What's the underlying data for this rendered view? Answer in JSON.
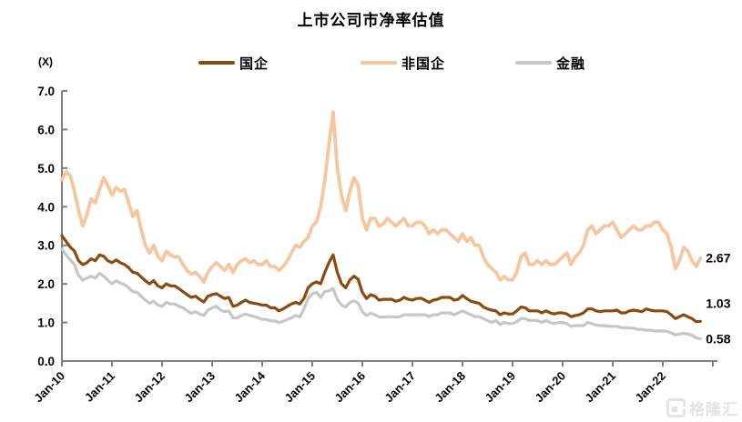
{
  "title": "上市公司市净率估值",
  "unit_label": "(X)",
  "watermark": {
    "text": "格隆汇"
  },
  "colors": {
    "guoqi": "#8B4A0F",
    "fei_guoqi": "#F6C79E",
    "jinrong": "#C6C6C6",
    "axis": "#7F7F7F",
    "text": "#000000",
    "watermark": "#E4E4E4"
  },
  "chart_data": {
    "type": "line",
    "title": "上市公司市净率估值",
    "ylabel": "(X)",
    "ylim": [
      0,
      7
    ],
    "ytick_step": 1.0,
    "ytick_labels": [
      "0.0",
      "1.0",
      "2.0",
      "3.0",
      "4.0",
      "5.0",
      "6.0",
      "7.0"
    ],
    "grid": false,
    "legend_position": "top",
    "x_frequency": "monthly",
    "x_range": [
      "Jan-2010",
      "Oct-2022"
    ],
    "xtick_labels": [
      "Jan-10",
      "Jan-11",
      "Jan-12",
      "Jan-13",
      "Jan-14",
      "Jan-15",
      "Jan-16",
      "Jan-17",
      "Jan-18",
      "Jan-19",
      "Jan-20",
      "Jan-21",
      "Jan-22"
    ],
    "series": [
      {
        "name": "国企",
        "color": "#8B4A0F",
        "end_label": "1.03",
        "values": [
          3.25,
          3.1,
          2.95,
          2.85,
          2.6,
          2.5,
          2.55,
          2.65,
          2.6,
          2.75,
          2.72,
          2.6,
          2.55,
          2.62,
          2.55,
          2.5,
          2.42,
          2.3,
          2.28,
          2.18,
          2.08,
          2.0,
          2.08,
          1.95,
          1.9,
          2.0,
          1.95,
          1.95,
          1.88,
          1.8,
          1.72,
          1.65,
          1.68,
          1.6,
          1.53,
          1.68,
          1.72,
          1.75,
          1.68,
          1.62,
          1.65,
          1.42,
          1.45,
          1.52,
          1.58,
          1.52,
          1.5,
          1.48,
          1.45,
          1.45,
          1.38,
          1.38,
          1.3,
          1.35,
          1.42,
          1.48,
          1.52,
          1.48,
          1.62,
          1.9,
          2.0,
          2.05,
          2.0,
          2.3,
          2.55,
          2.75,
          2.3,
          2.0,
          1.9,
          2.1,
          2.2,
          2.12,
          1.78,
          1.62,
          1.72,
          1.68,
          1.58,
          1.6,
          1.6,
          1.6,
          1.55,
          1.58,
          1.65,
          1.6,
          1.58,
          1.62,
          1.63,
          1.58,
          1.52,
          1.58,
          1.6,
          1.65,
          1.65,
          1.65,
          1.58,
          1.6,
          1.7,
          1.62,
          1.55,
          1.52,
          1.5,
          1.4,
          1.35,
          1.32,
          1.3,
          1.2,
          1.25,
          1.22,
          1.22,
          1.3,
          1.4,
          1.38,
          1.3,
          1.3,
          1.3,
          1.25,
          1.3,
          1.25,
          1.22,
          1.25,
          1.25,
          1.22,
          1.15,
          1.18,
          1.2,
          1.25,
          1.35,
          1.35,
          1.3,
          1.28,
          1.3,
          1.3,
          1.3,
          1.32,
          1.25,
          1.25,
          1.3,
          1.32,
          1.3,
          1.28,
          1.35,
          1.32,
          1.3,
          1.3,
          1.3,
          1.28,
          1.2,
          1.1,
          1.15,
          1.2,
          1.15,
          1.1,
          1.02,
          1.03
        ]
      },
      {
        "name": "非国企",
        "color": "#F6C79E",
        "end_label": "2.67",
        "values": [
          4.7,
          4.9,
          4.8,
          4.4,
          3.9,
          3.5,
          3.8,
          4.2,
          4.1,
          4.45,
          4.75,
          4.55,
          4.3,
          4.5,
          4.4,
          4.45,
          4.1,
          3.75,
          3.9,
          3.4,
          3.0,
          2.8,
          3.0,
          2.72,
          2.6,
          2.85,
          2.75,
          2.7,
          2.7,
          2.5,
          2.35,
          2.25,
          2.3,
          2.2,
          2.05,
          2.3,
          2.45,
          2.55,
          2.45,
          2.35,
          2.5,
          2.3,
          2.5,
          2.6,
          2.65,
          2.55,
          2.6,
          2.5,
          2.5,
          2.6,
          2.45,
          2.45,
          2.35,
          2.45,
          2.6,
          2.8,
          3.0,
          2.95,
          3.1,
          3.2,
          3.5,
          3.6,
          4.0,
          4.7,
          5.6,
          6.45,
          5.0,
          4.3,
          3.9,
          4.4,
          4.75,
          4.55,
          3.7,
          3.4,
          3.7,
          3.7,
          3.5,
          3.55,
          3.7,
          3.6,
          3.5,
          3.6,
          3.7,
          3.5,
          3.5,
          3.6,
          3.6,
          3.5,
          3.3,
          3.4,
          3.3,
          3.4,
          3.4,
          3.3,
          3.2,
          3.1,
          3.3,
          3.1,
          3.2,
          3.0,
          3.0,
          2.7,
          2.5,
          2.4,
          2.3,
          2.1,
          2.2,
          2.1,
          2.1,
          2.3,
          2.7,
          2.8,
          2.5,
          2.5,
          2.6,
          2.5,
          2.6,
          2.5,
          2.5,
          2.6,
          2.7,
          2.8,
          2.5,
          2.7,
          2.8,
          3.0,
          3.4,
          3.5,
          3.3,
          3.4,
          3.5,
          3.5,
          3.6,
          3.4,
          3.2,
          3.3,
          3.4,
          3.5,
          3.4,
          3.4,
          3.5,
          3.5,
          3.6,
          3.6,
          3.4,
          3.3,
          2.95,
          2.4,
          2.6,
          2.95,
          2.85,
          2.6,
          2.45,
          2.67
        ]
      },
      {
        "name": "金融",
        "color": "#C6C6C6",
        "end_label": "0.58",
        "values": [
          2.9,
          2.75,
          2.62,
          2.5,
          2.22,
          2.1,
          2.15,
          2.2,
          2.15,
          2.28,
          2.2,
          2.1,
          2.0,
          2.08,
          2.02,
          1.98,
          1.9,
          1.8,
          1.78,
          1.68,
          1.58,
          1.5,
          1.55,
          1.45,
          1.42,
          1.52,
          1.48,
          1.48,
          1.42,
          1.38,
          1.3,
          1.24,
          1.28,
          1.22,
          1.18,
          1.32,
          1.38,
          1.42,
          1.32,
          1.28,
          1.3,
          1.12,
          1.12,
          1.18,
          1.22,
          1.18,
          1.16,
          1.12,
          1.08,
          1.08,
          1.04,
          1.04,
          1.0,
          1.03,
          1.08,
          1.12,
          1.18,
          1.14,
          1.35,
          1.62,
          1.75,
          1.78,
          1.65,
          1.8,
          1.82,
          1.88,
          1.6,
          1.45,
          1.4,
          1.52,
          1.56,
          1.5,
          1.28,
          1.18,
          1.24,
          1.2,
          1.14,
          1.14,
          1.15,
          1.15,
          1.14,
          1.15,
          1.2,
          1.2,
          1.2,
          1.2,
          1.2,
          1.2,
          1.15,
          1.2,
          1.2,
          1.25,
          1.25,
          1.25,
          1.2,
          1.25,
          1.3,
          1.25,
          1.2,
          1.15,
          1.15,
          1.1,
          1.05,
          1.0,
          1.05,
          0.95,
          1.0,
          0.97,
          0.97,
          1.02,
          1.1,
          1.1,
          1.05,
          1.05,
          1.05,
          1.0,
          1.05,
          1.0,
          0.97,
          1.0,
          1.0,
          0.97,
          0.9,
          0.92,
          0.92,
          0.92,
          1.0,
          0.97,
          0.93,
          0.92,
          0.92,
          0.9,
          0.9,
          0.9,
          0.87,
          0.86,
          0.86,
          0.85,
          0.82,
          0.82,
          0.8,
          0.8,
          0.78,
          0.78,
          0.78,
          0.77,
          0.73,
          0.68,
          0.7,
          0.72,
          0.7,
          0.67,
          0.6,
          0.58
        ]
      }
    ]
  }
}
